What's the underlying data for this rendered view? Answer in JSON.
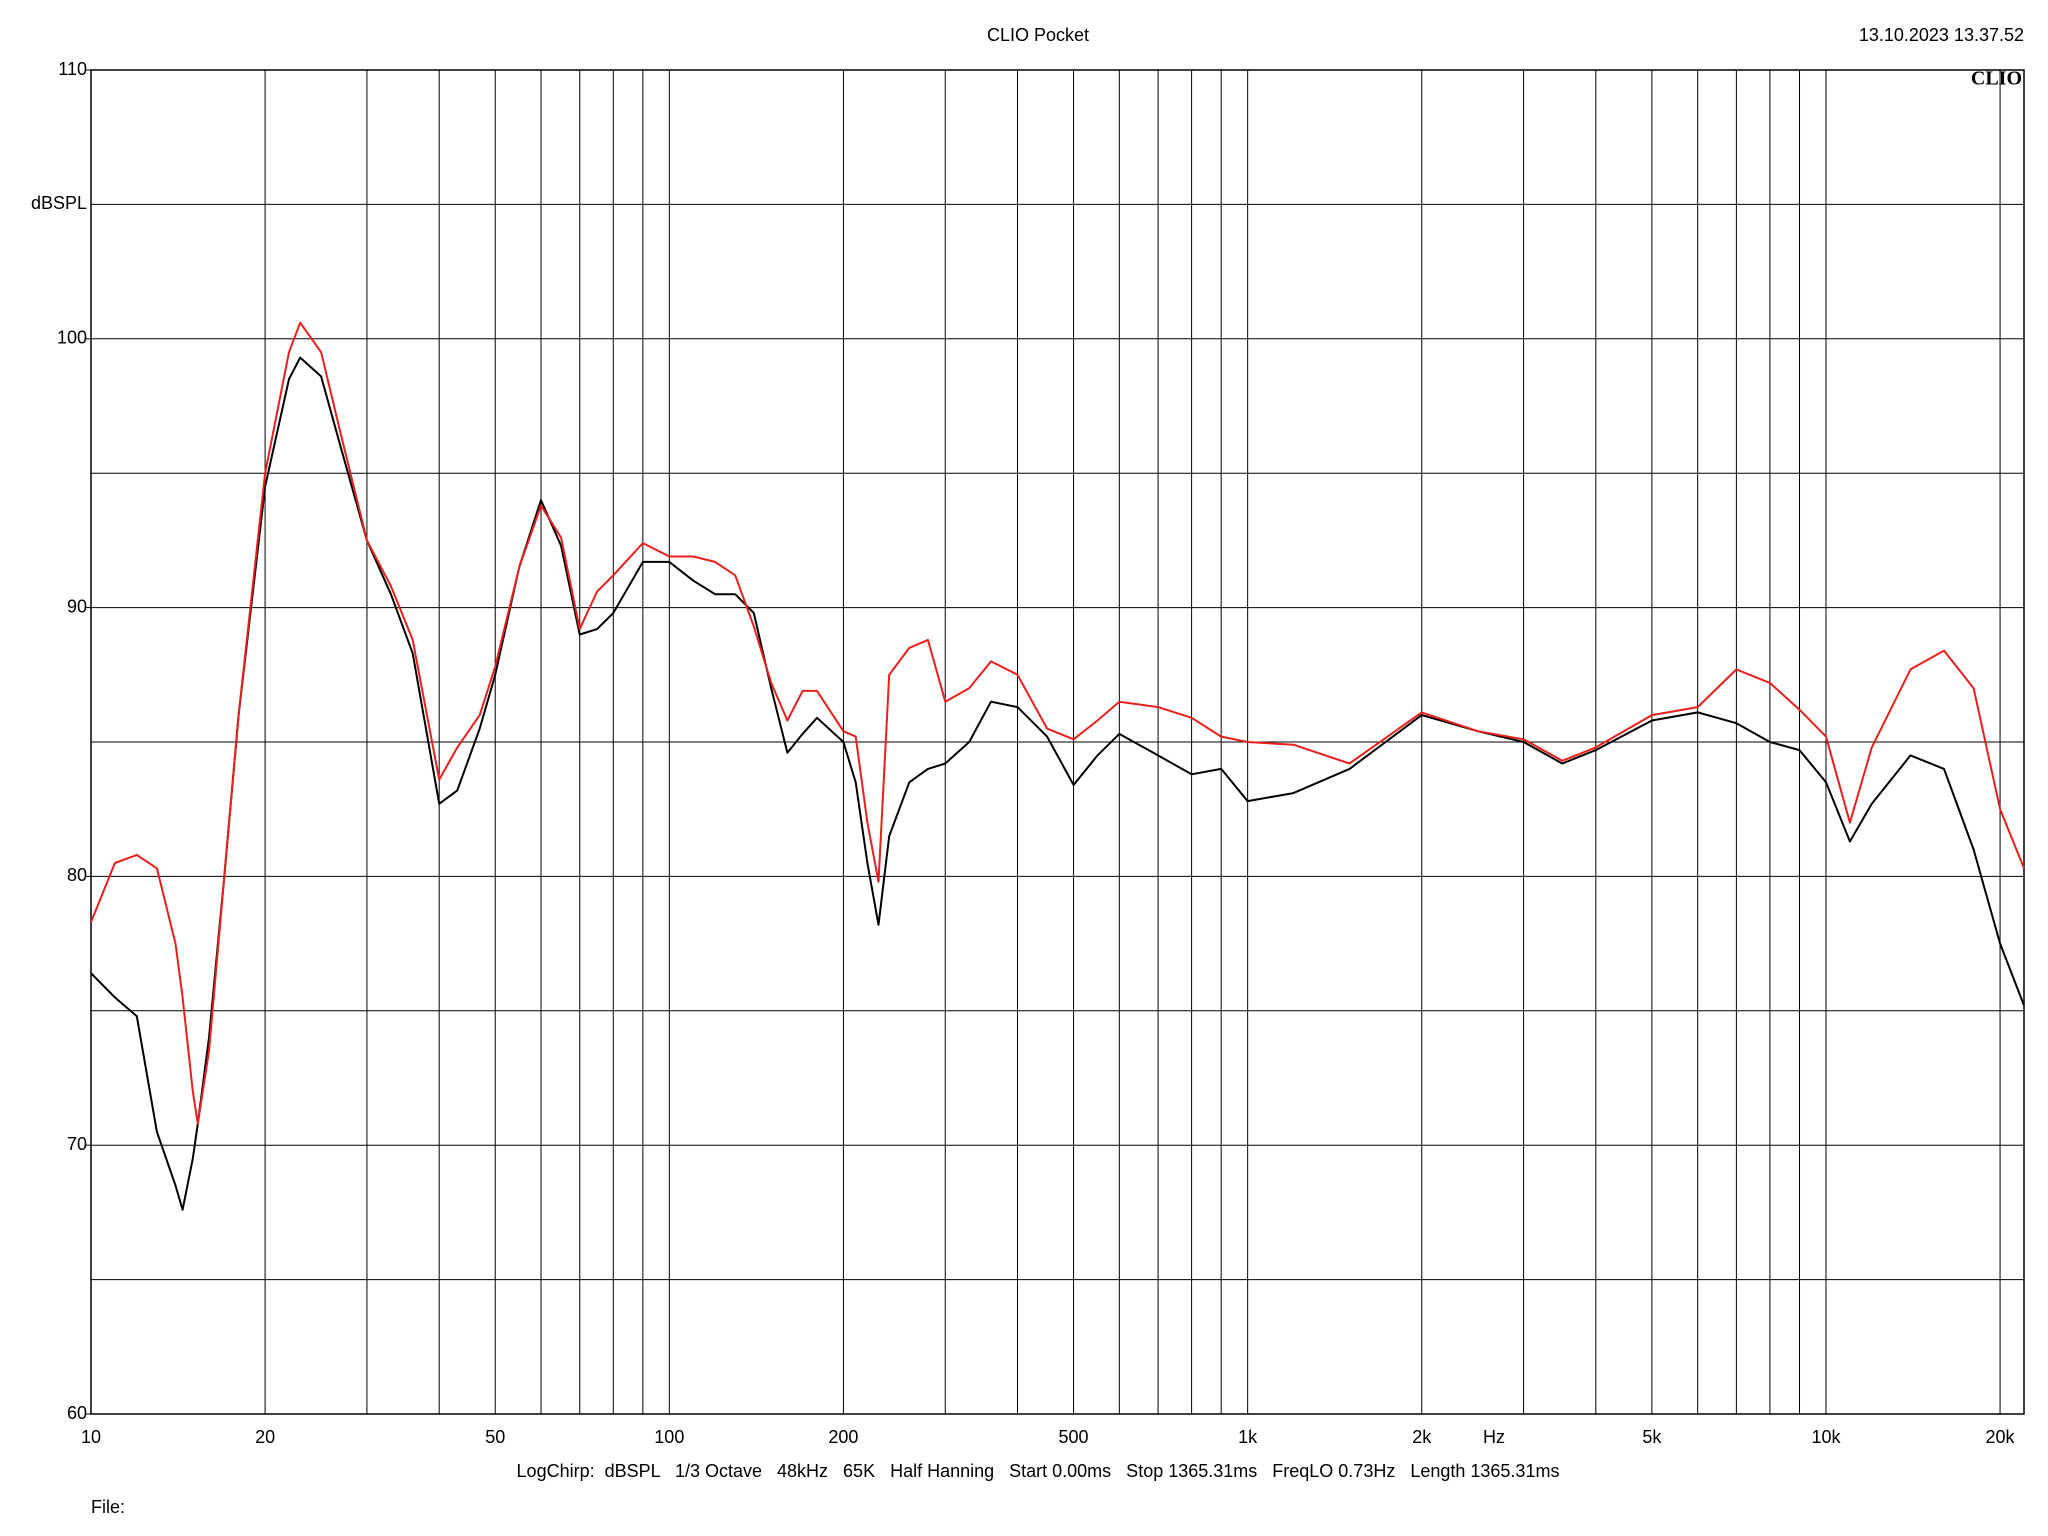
{
  "chart_data": {
    "type": "line",
    "title": "CLIO Pocket",
    "timestamp": "13.10.2023 13.37.52",
    "logo": "CLIO",
    "y_label": "dBSPL",
    "x_label": "Hz",
    "footer": "LogChirp:  dBSPL   1/3 Octave   48kHz   65K   Half Hanning   Start 0.00ms   Stop 1365.31ms   FreqLO 0.73Hz   Length 1365.31ms",
    "file_label": "File:",
    "log_x": true,
    "grid": true,
    "xlim": [
      10,
      22000
    ],
    "ylim": [
      60,
      110
    ],
    "xticks": [
      10,
      20,
      50,
      100,
      200,
      500,
      {
        "value": 1000,
        "label": "1k"
      },
      {
        "value": 2000,
        "label": "2k"
      },
      {
        "value": 5000,
        "label": "5k"
      },
      {
        "value": 10000,
        "label": "10k"
      },
      {
        "value": 20000,
        "label": "20k"
      }
    ],
    "x_minor_grid": [
      30,
      40,
      60,
      70,
      80,
      90,
      300,
      400,
      600,
      700,
      800,
      900,
      3000,
      4000,
      6000,
      7000,
      8000,
      9000
    ],
    "yticks": [
      60,
      70,
      80,
      90,
      100,
      110
    ],
    "y_minor_grid": [
      65,
      75,
      85,
      95,
      105
    ],
    "x": [
      10,
      11,
      12,
      13,
      14,
      14.4,
      15,
      15.3,
      16,
      17,
      18,
      20,
      22,
      23,
      25,
      27,
      30,
      33,
      36,
      40,
      43,
      47,
      50,
      55,
      60,
      65,
      70,
      75,
      80,
      90,
      100,
      110,
      120,
      130,
      140,
      150,
      160,
      170,
      180,
      200,
      210,
      220,
      230,
      240,
      260,
      280,
      300,
      330,
      360,
      400,
      450,
      500,
      550,
      600,
      700,
      800,
      900,
      1000,
      1200,
      1500,
      2000,
      2500,
      3000,
      3500,
      4000,
      5000,
      6000,
      7000,
      8000,
      9000,
      10000,
      11000,
      12000,
      14000,
      16000,
      18000,
      20000,
      22000
    ],
    "series": [
      {
        "color": "#000000",
        "values": [
          76.4,
          75.5,
          74.8,
          70.5,
          68.5,
          67.6,
          69.5,
          70.8,
          74,
          80,
          86,
          94.5,
          98.5,
          99.3,
          98.6,
          96,
          92.5,
          90.5,
          88.3,
          82.7,
          83.2,
          85.5,
          87.5,
          91.5,
          94,
          92.3,
          89,
          89.2,
          89.8,
          91.7,
          91.7,
          91,
          90.5,
          90.5,
          89.8,
          87,
          84.6,
          85.3,
          85.9,
          85,
          83.5,
          80.5,
          78.2,
          81.5,
          83.5,
          84,
          84.2,
          85,
          86.5,
          86.3,
          85.2,
          83.4,
          84.5,
          85.3,
          84.5,
          83.8,
          84,
          82.8,
          83.1,
          84,
          86,
          85.4,
          85,
          84.2,
          84.7,
          85.8,
          86.1,
          85.7,
          85,
          84.7,
          83.5,
          81.3,
          82.7,
          84.5,
          84,
          81,
          77.5,
          75.2
        ]
      },
      {
        "color": "#e8201c",
        "values": [
          78.3,
          80.5,
          80.8,
          80.3,
          77.5,
          75.5,
          72,
          70.8,
          73.5,
          80,
          86,
          95,
          99.5,
          100.6,
          99.5,
          96.5,
          92.5,
          90.8,
          88.8,
          83.6,
          84.8,
          86,
          87.8,
          91.5,
          93.8,
          92.6,
          89.2,
          90.6,
          91.2,
          92.4,
          91.9,
          91.9,
          91.7,
          91.2,
          89.3,
          87.2,
          85.8,
          86.9,
          86.9,
          85.4,
          85.2,
          82,
          79.8,
          87.5,
          88.5,
          88.8,
          86.5,
          87,
          88,
          87.5,
          85.5,
          85.1,
          85.8,
          86.5,
          86.3,
          85.9,
          85.2,
          85,
          84.9,
          84.2,
          86.1,
          85.4,
          85.1,
          84.3,
          84.8,
          86,
          86.3,
          87.7,
          87.2,
          86.2,
          85.2,
          82,
          84.8,
          87.7,
          88.4,
          87,
          82.5,
          80.3
        ]
      }
    ]
  }
}
